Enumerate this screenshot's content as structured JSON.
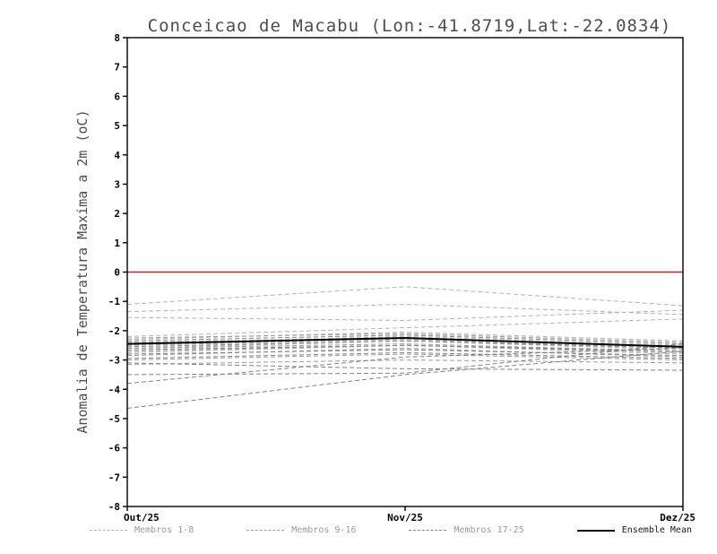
{
  "chart_data": {
    "type": "line",
    "title": "Conceicao de Macabu (Lon:-41.8719,Lat:-22.0834)",
    "ylabel": "Anomalia de Temperatura Maxima a 2m (oC)",
    "xlabel": "",
    "x_tick_labels": [
      "Out/25",
      "Nov/25",
      "Dez/25"
    ],
    "ylim": [
      -8,
      8
    ],
    "y_tick_step": 1,
    "grid": false,
    "zero_line": {
      "y": 0,
      "color": "#fa0a0a"
    },
    "group_colors": [
      "#b3b3b3",
      "#9a9a9a",
      "#828282"
    ],
    "members": [
      {
        "name": "Membro 1",
        "group": 0,
        "values": [
          -1.1,
          -0.5,
          -1.15
        ]
      },
      {
        "name": "Membro 2",
        "group": 0,
        "values": [
          -1.35,
          -1.1,
          -1.45
        ]
      },
      {
        "name": "Membro 3",
        "group": 0,
        "values": [
          -1.55,
          -1.65,
          -1.3
        ]
      },
      {
        "name": "Membro 4",
        "group": 0,
        "values": [
          -2.2,
          -1.9,
          -1.6
        ]
      },
      {
        "name": "Membro 5",
        "group": 0,
        "values": [
          -2.3,
          -2.05,
          -2.35
        ]
      },
      {
        "name": "Membro 6",
        "group": 0,
        "values": [
          -2.45,
          -2.2,
          -2.5
        ]
      },
      {
        "name": "Membro 7",
        "group": 0,
        "values": [
          -2.6,
          -2.35,
          -2.65
        ]
      },
      {
        "name": "Membro 8",
        "group": 0,
        "values": [
          -2.75,
          -2.5,
          -2.8
        ]
      },
      {
        "name": "Membro 9",
        "group": 1,
        "values": [
          -2.25,
          -2.1,
          -2.4
        ]
      },
      {
        "name": "Membro 10",
        "group": 1,
        "values": [
          -2.4,
          -2.25,
          -2.55
        ]
      },
      {
        "name": "Membro 11",
        "group": 1,
        "values": [
          -2.5,
          -2.3,
          -2.6
        ]
      },
      {
        "name": "Membro 12",
        "group": 1,
        "values": [
          -2.6,
          -2.45,
          -2.7
        ]
      },
      {
        "name": "Membro 13",
        "group": 1,
        "values": [
          -2.7,
          -2.5,
          -2.75
        ]
      },
      {
        "name": "Membro 14",
        "group": 1,
        "values": [
          -2.85,
          -2.6,
          -2.9
        ]
      },
      {
        "name": "Membro 15",
        "group": 1,
        "values": [
          -3.0,
          -2.8,
          -3.0
        ]
      },
      {
        "name": "Membro 16",
        "group": 1,
        "values": [
          -3.15,
          -3.0,
          -3.1
        ]
      },
      {
        "name": "Membro 17",
        "group": 2,
        "values": [
          -2.35,
          -2.15,
          -2.45
        ]
      },
      {
        "name": "Membro 18",
        "group": 2,
        "values": [
          -2.55,
          -2.35,
          -2.6
        ]
      },
      {
        "name": "Membro 19",
        "group": 2,
        "values": [
          -2.65,
          -2.5,
          -2.7
        ]
      },
      {
        "name": "Membro 20",
        "group": 2,
        "values": [
          -2.8,
          -2.65,
          -2.85
        ]
      },
      {
        "name": "Membro 21",
        "group": 2,
        "values": [
          -2.95,
          -2.75,
          -2.95
        ]
      },
      {
        "name": "Membro 22",
        "group": 2,
        "values": [
          -3.1,
          -3.3,
          -3.35
        ]
      },
      {
        "name": "Membro 23",
        "group": 2,
        "values": [
          -3.5,
          -3.45,
          -2.45
        ]
      },
      {
        "name": "Membro 24",
        "group": 2,
        "values": [
          -3.8,
          -2.9,
          -2.6
        ]
      },
      {
        "name": "Membro 25",
        "group": 2,
        "values": [
          -4.65,
          -3.5,
          -2.7
        ]
      }
    ],
    "ensemble_mean": {
      "name": "Ensemble Mean",
      "values": [
        -2.45,
        -2.25,
        -2.55
      ],
      "color": "#000000"
    },
    "legend": [
      {
        "label": "Membros 1-8",
        "line": "dashed",
        "color": "#b3b3b3",
        "text_color": "#9a9a9a"
      },
      {
        "label": "Membros 9-16",
        "line": "dashed",
        "color": "#9a9a9a",
        "text_color": "#9a9a9a"
      },
      {
        "label": "Membros 17-25",
        "line": "dashed",
        "color": "#828282",
        "text_color": "#9a9a9a"
      },
      {
        "label": "Ensemble Mean",
        "line": "solid",
        "color": "#000000",
        "text_color": "#1a1a1a"
      }
    ]
  }
}
